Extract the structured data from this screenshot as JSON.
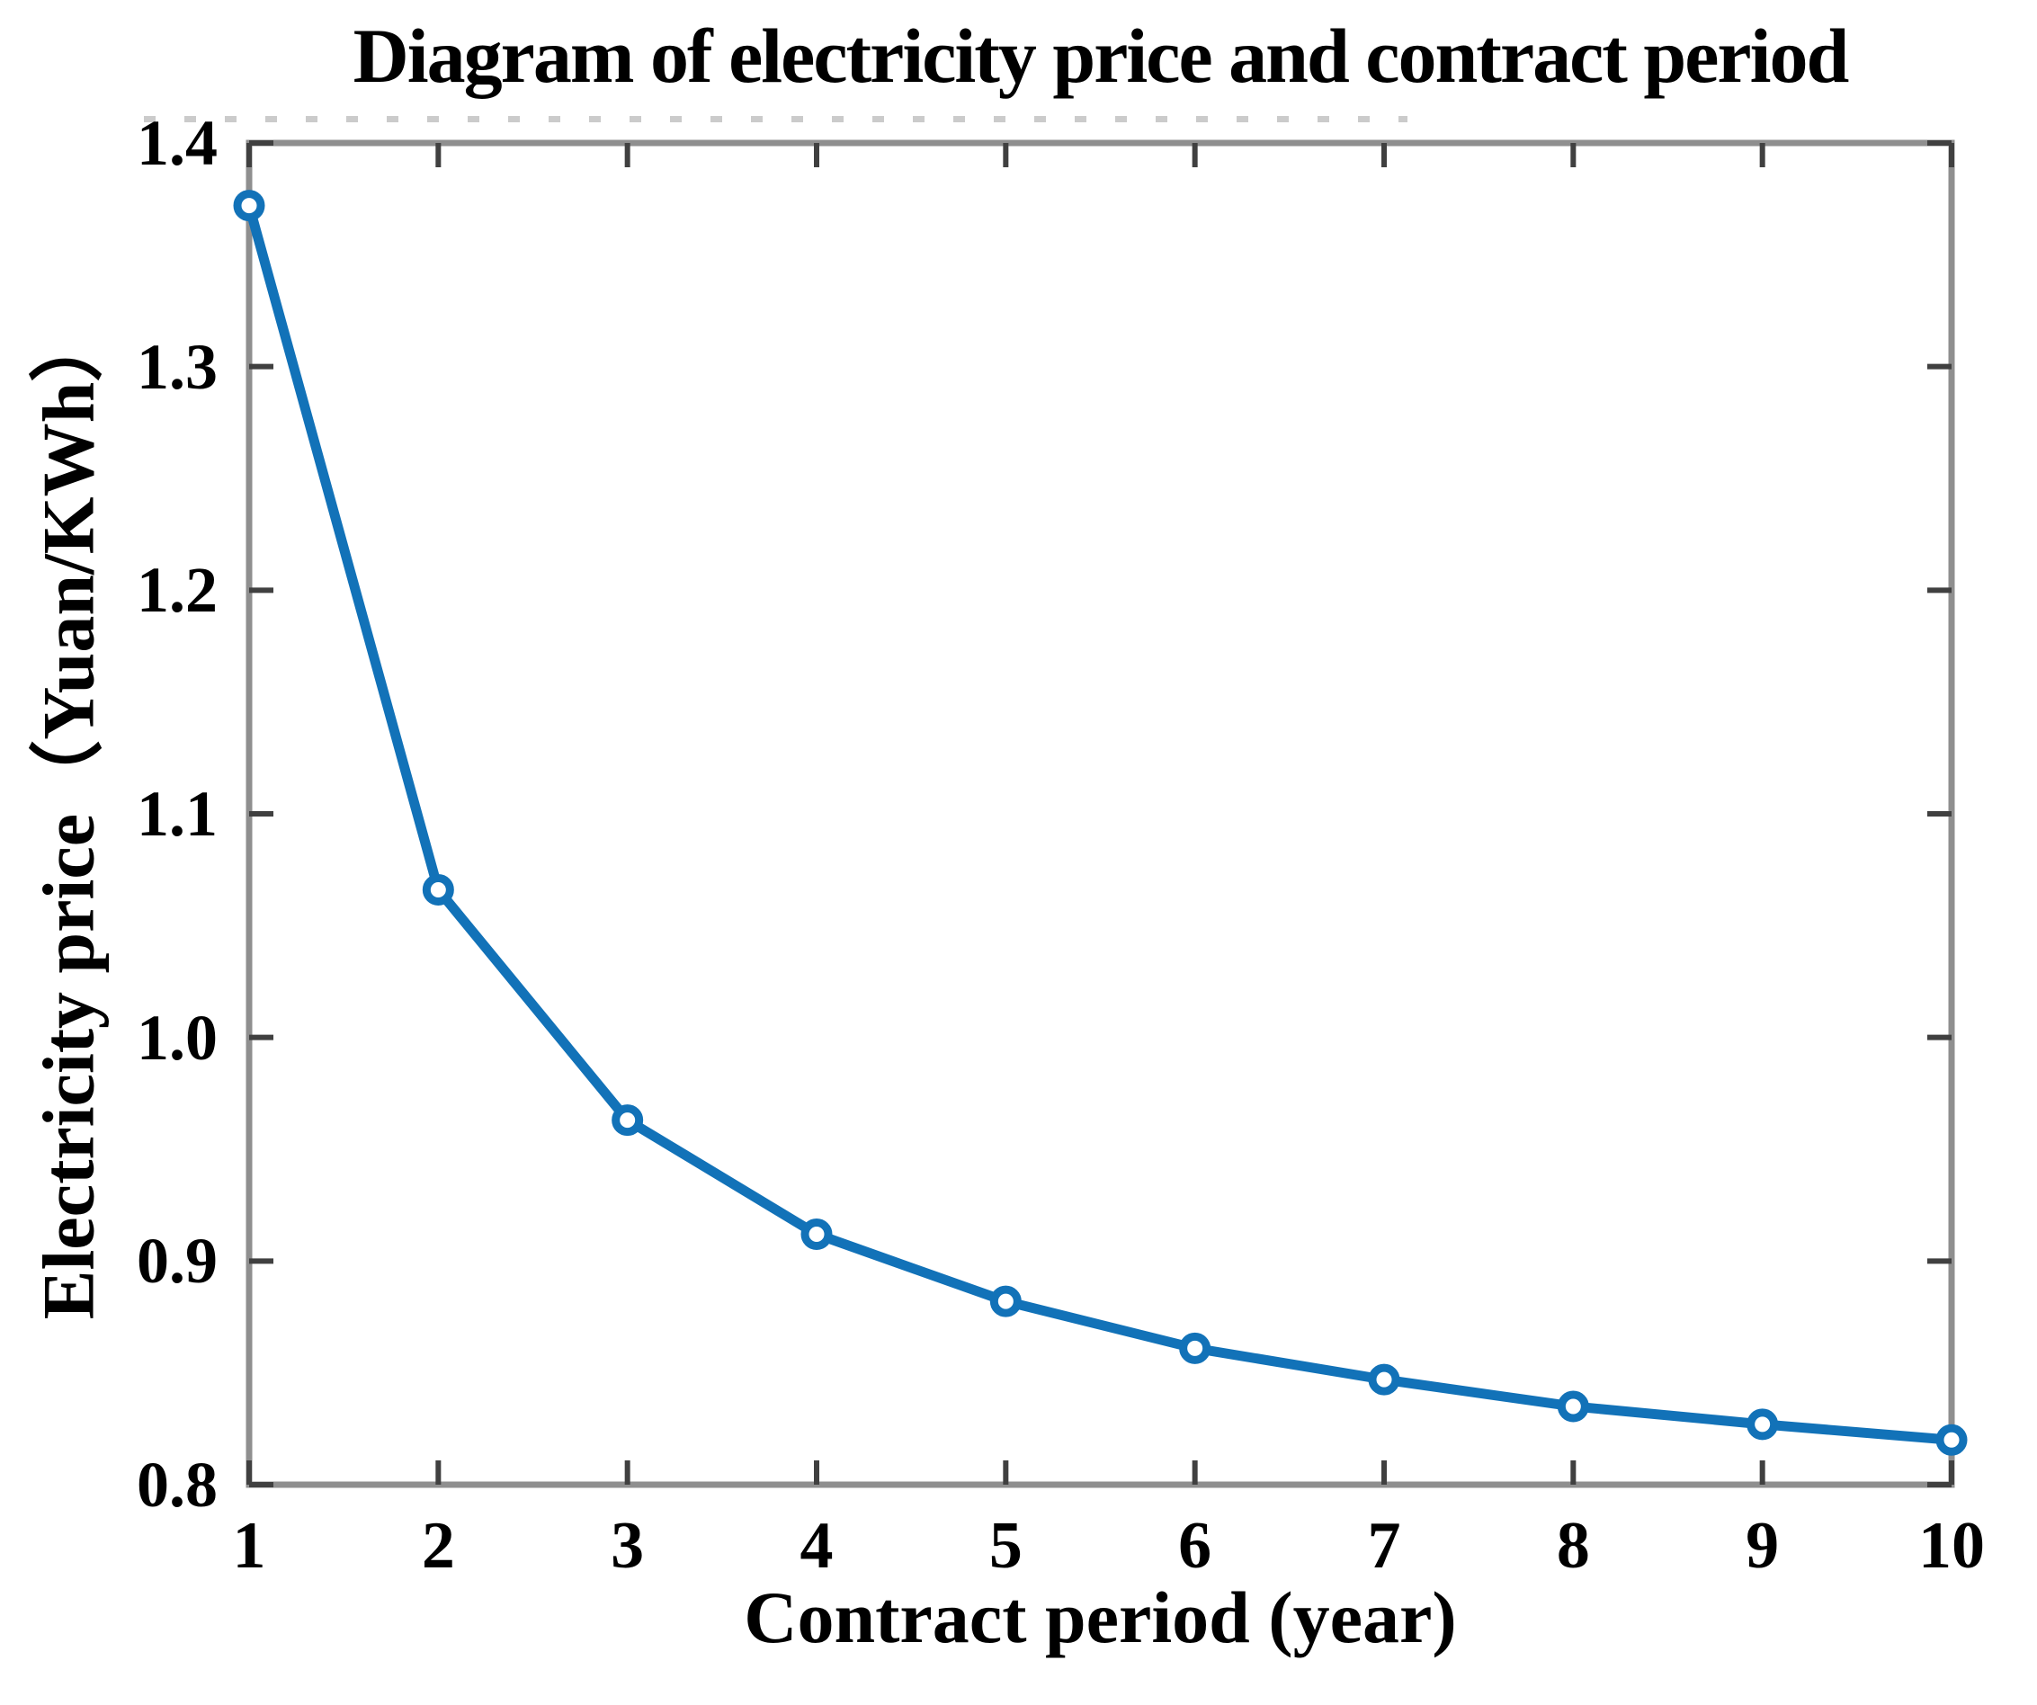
{
  "chart_data": {
    "type": "line",
    "title": "Diagram of electricity price and contract period",
    "xlabel": "Contract period (year)",
    "ylabel": "Electricity price（Yuan/KWh）",
    "series": [
      {
        "name": "Electricity price",
        "x": [
          1,
          2,
          3,
          4,
          5,
          6,
          7,
          8,
          9,
          10
        ],
        "y": [
          1.372,
          1.066,
          0.963,
          0.912,
          0.882,
          0.861,
          0.847,
          0.835,
          0.827,
          0.82
        ]
      }
    ],
    "xlim": [
      1,
      10
    ],
    "ylim": [
      0.8,
      1.4
    ],
    "xticks": [
      1,
      2,
      3,
      4,
      5,
      6,
      7,
      8,
      9,
      10
    ],
    "xtick_labels": [
      "1",
      "2",
      "3",
      "4",
      "5",
      "6",
      "7",
      "8",
      "9",
      "10"
    ],
    "yticks": [
      0.8,
      0.9,
      1.0,
      1.1,
      1.2,
      1.3,
      1.4
    ],
    "ytick_labels": [
      "0.8",
      "0.9",
      "1.0",
      "1.1",
      "1.2",
      "1.3",
      "1.4"
    ],
    "grid": false,
    "legend": null,
    "box": true,
    "tick_direction": "in",
    "colors": {
      "line": "#1272b8",
      "marker_stroke": "#1272b8",
      "marker_fill": "#ffffff",
      "axis": "#8f8f8f",
      "tick": "#404040",
      "text": "#000000",
      "background": "#ffffff"
    },
    "marker": "o",
    "line_width": 11
  }
}
